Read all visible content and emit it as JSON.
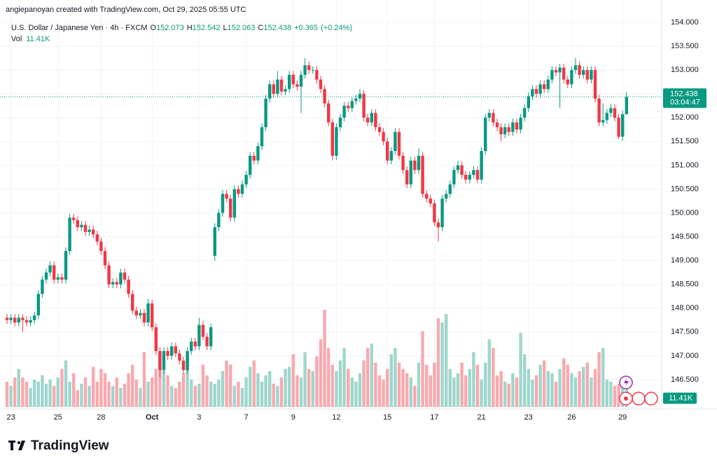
{
  "header": {
    "credit": "angiepanoyan created with TradingView.com, Oct 29, 2025 05:55 UTC"
  },
  "chart_data": {
    "type": "candlestick",
    "symbol": "U.S. Dollar / Japanese Yen · 4h · FXCM",
    "ohlc_labels": [
      "O",
      "H",
      "L",
      "C"
    ],
    "change": "+0.365",
    "change_pct": "(+0.24%)",
    "volume_name": "Vol",
    "volume_value_label": "11.41K",
    "countdown": "03:04:47",
    "up_color": "#089981",
    "down_color": "#f23645",
    "up_volume_color": "#9ed6cd",
    "down_volume_color": "#f8a9ae",
    "grid": true,
    "ylim": [
      145.883,
      154.47
    ],
    "yticks": [
      {
        "value": 154,
        "label": "154.000"
      },
      {
        "value": 153.5,
        "label": "153.500"
      },
      {
        "value": 153,
        "label": "153.000"
      },
      {
        "value": 152.5,
        "label": "152.500"
      },
      {
        "value": 152,
        "label": "152.000"
      },
      {
        "value": 151.5,
        "label": "151.500"
      },
      {
        "value": 151,
        "label": "151.000"
      },
      {
        "value": 150.5,
        "label": "150.500"
      },
      {
        "value": 150,
        "label": "150.000"
      },
      {
        "value": 149.5,
        "label": "149.500"
      },
      {
        "value": 149,
        "label": "149.000"
      },
      {
        "value": 148.5,
        "label": "148.500"
      },
      {
        "value": 148,
        "label": "148.000"
      },
      {
        "value": 147.5,
        "label": "147.500"
      },
      {
        "value": 147,
        "label": "147.000"
      },
      {
        "value": 146.5,
        "label": "146.500"
      }
    ],
    "volume_ylim": [
      0,
      50
    ],
    "categories": [
      null,
      "23",
      null,
      null,
      null,
      null,
      null,
      null,
      null,
      null,
      null,
      null,
      null,
      "25",
      null,
      null,
      null,
      null,
      null,
      null,
      null,
      null,
      null,
      null,
      "28",
      null,
      null,
      null,
      null,
      null,
      null,
      null,
      null,
      null,
      null,
      null,
      null,
      "Oct",
      null,
      null,
      null,
      null,
      null,
      null,
      null,
      null,
      null,
      null,
      null,
      "3",
      null,
      null,
      null,
      null,
      null,
      null,
      null,
      null,
      null,
      null,
      null,
      "7",
      null,
      null,
      null,
      null,
      null,
      null,
      null,
      null,
      null,
      null,
      null,
      "9",
      null,
      null,
      null,
      null,
      null,
      null,
      null,
      null,
      null,
      null,
      "12",
      null,
      null,
      null,
      null,
      null,
      null,
      null,
      null,
      null,
      null,
      null,
      null,
      "15",
      null,
      null,
      null,
      null,
      null,
      null,
      null,
      null,
      null,
      null,
      null,
      "17",
      null,
      null,
      null,
      null,
      null,
      null,
      null,
      null,
      null,
      null,
      null,
      "21",
      null,
      null,
      null,
      null,
      null,
      null,
      null,
      null,
      null,
      null,
      null,
      "23",
      null,
      null,
      null,
      null,
      null,
      null,
      null,
      null,
      null,
      null,
      "26",
      null,
      null,
      null,
      null,
      null,
      null,
      null,
      null,
      null,
      null,
      null,
      null,
      "29",
      null
    ],
    "candles": [
      [
        147.8,
        147.88,
        147.67,
        147.75
      ],
      [
        147.75,
        147.88,
        147.67,
        147.8
      ],
      [
        147.8,
        147.88,
        147.62,
        147.7
      ],
      [
        147.7,
        147.88,
        147.62,
        147.8
      ],
      [
        147.8,
        147.88,
        147.5,
        147.75
      ],
      [
        147.75,
        147.83,
        147.62,
        147.7
      ],
      [
        147.7,
        147.83,
        147.62,
        147.75
      ],
      [
        147.75,
        147.93,
        147.67,
        147.85
      ],
      [
        147.85,
        148.38,
        147.77,
        148.3
      ],
      [
        148.3,
        148.68,
        148.22,
        148.6
      ],
      [
        148.6,
        148.83,
        148.52,
        148.75
      ],
      [
        148.75,
        148.98,
        148.67,
        148.9
      ],
      [
        148.9,
        148.98,
        148.52,
        148.6
      ],
      [
        148.6,
        148.73,
        148.52,
        148.65
      ],
      [
        148.65,
        148.73,
        148.52,
        148.6
      ],
      [
        148.6,
        149.28,
        148.52,
        149.2
      ],
      [
        149.2,
        149.98,
        149.12,
        149.9
      ],
      [
        149.9,
        149.98,
        149.77,
        149.85
      ],
      [
        149.85,
        149.93,
        149.62,
        149.7
      ],
      [
        149.7,
        149.83,
        149.62,
        149.75
      ],
      [
        149.75,
        149.83,
        149.52,
        149.6
      ],
      [
        149.6,
        149.73,
        149.52,
        149.65
      ],
      [
        149.65,
        149.73,
        149.47,
        149.55
      ],
      [
        149.55,
        149.63,
        149.32,
        149.4
      ],
      [
        149.4,
        149.48,
        149.12,
        149.2
      ],
      [
        149.2,
        149.28,
        148.82,
        148.9
      ],
      [
        148.9,
        148.98,
        148.42,
        148.5
      ],
      [
        148.5,
        148.63,
        148.42,
        148.55
      ],
      [
        148.55,
        148.63,
        148.42,
        148.5
      ],
      [
        148.5,
        148.83,
        148.42,
        148.75
      ],
      [
        148.75,
        148.83,
        148.52,
        148.6
      ],
      [
        148.6,
        148.68,
        148.22,
        148.3
      ],
      [
        148.3,
        148.38,
        147.87,
        147.95
      ],
      [
        147.95,
        148.03,
        147.77,
        147.85
      ],
      [
        147.85,
        147.98,
        147.77,
        147.9
      ],
      [
        147.9,
        147.98,
        147.62,
        147.7
      ],
      [
        147.7,
        148.2,
        147.62,
        148.1
      ],
      [
        148.1,
        148.18,
        147.52,
        147.6
      ],
      [
        147.6,
        147.68,
        147.02,
        147.1
      ],
      [
        147.1,
        147.18,
        146.55,
        146.7
      ],
      [
        146.7,
        147.18,
        146.62,
        147.1
      ],
      [
        147.1,
        147.18,
        146.92,
        147.0
      ],
      [
        147.0,
        147.28,
        146.92,
        147.2
      ],
      [
        147.2,
        147.28,
        146.97,
        147.05
      ],
      [
        147.05,
        147.13,
        146.82,
        146.9
      ],
      [
        146.9,
        146.98,
        146.62,
        146.7
      ],
      [
        146.7,
        147.18,
        146.62,
        147.1
      ],
      [
        147.1,
        147.38,
        147.02,
        147.3
      ],
      [
        147.3,
        147.38,
        147.12,
        147.2
      ],
      [
        147.2,
        147.8,
        147.12,
        147.65
      ],
      [
        147.65,
        147.73,
        147.32,
        147.4
      ],
      [
        147.4,
        147.48,
        147.12,
        147.2
      ],
      [
        147.2,
        147.68,
        147.12,
        147.6
      ],
      [
        149.1,
        149.78,
        149.0,
        149.7
      ],
      [
        149.7,
        150.08,
        149.62,
        150.0
      ],
      [
        150.0,
        150.48,
        149.92,
        150.4
      ],
      [
        150.4,
        150.48,
        150.22,
        150.3
      ],
      [
        150.3,
        150.38,
        149.82,
        149.9
      ],
      [
        149.9,
        150.58,
        149.82,
        150.5
      ],
      [
        150.5,
        150.58,
        150.32,
        150.4
      ],
      [
        150.4,
        150.68,
        150.32,
        150.6
      ],
      [
        150.6,
        150.88,
        150.52,
        150.8
      ],
      [
        150.8,
        151.28,
        150.72,
        151.2
      ],
      [
        151.2,
        151.28,
        151.02,
        151.1
      ],
      [
        151.1,
        151.48,
        151.02,
        151.4
      ],
      [
        151.4,
        151.88,
        151.32,
        151.8
      ],
      [
        151.8,
        152.48,
        151.72,
        152.4
      ],
      [
        152.4,
        152.78,
        152.32,
        152.7
      ],
      [
        152.7,
        152.78,
        152.42,
        152.5
      ],
      [
        152.5,
        152.98,
        152.42,
        152.8
      ],
      [
        152.8,
        152.88,
        152.47,
        152.55
      ],
      [
        152.55,
        152.68,
        152.47,
        152.6
      ],
      [
        152.6,
        152.98,
        152.52,
        152.9
      ],
      [
        152.9,
        152.98,
        152.62,
        152.7
      ],
      [
        152.7,
        152.78,
        152.57,
        152.65
      ],
      [
        152.65,
        152.98,
        152.1,
        152.9
      ],
      [
        152.9,
        153.25,
        152.82,
        153.1
      ],
      [
        153.1,
        153.18,
        152.92,
        153.0
      ],
      [
        153.0,
        153.08,
        152.92,
        153.0
      ],
      [
        153.0,
        153.08,
        152.72,
        152.8
      ],
      [
        152.8,
        152.88,
        152.52,
        152.6
      ],
      [
        152.6,
        152.68,
        152.22,
        152.3
      ],
      [
        152.3,
        152.38,
        151.82,
        151.9
      ],
      [
        151.9,
        151.98,
        151.1,
        151.2
      ],
      [
        151.2,
        151.88,
        151.12,
        151.8
      ],
      [
        151.8,
        152.08,
        151.72,
        152.0
      ],
      [
        152.0,
        152.33,
        151.92,
        152.25
      ],
      [
        152.25,
        152.33,
        152.12,
        152.2
      ],
      [
        152.2,
        152.43,
        152.12,
        152.35
      ],
      [
        152.35,
        152.48,
        152.27,
        152.4
      ],
      [
        152.4,
        152.6,
        152.32,
        152.5
      ],
      [
        152.5,
        152.58,
        151.92,
        152.0
      ],
      [
        152.0,
        152.08,
        151.82,
        151.9
      ],
      [
        151.9,
        152.18,
        151.82,
        152.1
      ],
      [
        152.1,
        152.18,
        151.72,
        151.8
      ],
      [
        151.8,
        151.88,
        151.62,
        151.7
      ],
      [
        151.7,
        151.78,
        151.42,
        151.5
      ],
      [
        151.5,
        151.58,
        151.02,
        151.1
      ],
      [
        151.1,
        151.38,
        151.02,
        151.3
      ],
      [
        151.3,
        151.78,
        151.22,
        151.7
      ],
      [
        151.7,
        151.78,
        151.12,
        151.2
      ],
      [
        151.2,
        151.28,
        150.82,
        150.9
      ],
      [
        150.9,
        150.98,
        150.52,
        150.6
      ],
      [
        150.6,
        151.18,
        150.52,
        151.1
      ],
      [
        151.1,
        151.18,
        150.82,
        150.9
      ],
      [
        150.9,
        151.35,
        150.82,
        151.2
      ],
      [
        151.2,
        151.28,
        150.32,
        150.4
      ],
      [
        150.4,
        150.48,
        150.22,
        150.3
      ],
      [
        150.3,
        150.38,
        150.12,
        150.2
      ],
      [
        150.2,
        150.28,
        149.72,
        149.8
      ],
      [
        149.8,
        149.88,
        149.4,
        149.7
      ],
      [
        149.7,
        150.38,
        149.62,
        150.3
      ],
      [
        150.3,
        150.48,
        150.22,
        150.4
      ],
      [
        150.4,
        150.68,
        150.32,
        150.6
      ],
      [
        150.6,
        150.98,
        150.52,
        150.9
      ],
      [
        150.9,
        151.1,
        150.82,
        151.0
      ],
      [
        151.0,
        151.08,
        150.72,
        150.8
      ],
      [
        150.8,
        150.88,
        150.62,
        150.7
      ],
      [
        150.7,
        150.88,
        150.62,
        150.8
      ],
      [
        150.8,
        150.98,
        150.72,
        150.9
      ],
      [
        150.9,
        150.98,
        150.62,
        150.7
      ],
      [
        150.7,
        151.38,
        150.62,
        151.3
      ],
      [
        151.3,
        152.08,
        151.22,
        152.0
      ],
      [
        152.0,
        152.18,
        151.92,
        152.1
      ],
      [
        152.1,
        152.18,
        151.82,
        151.9
      ],
      [
        151.9,
        151.98,
        151.72,
        151.8
      ],
      [
        151.8,
        151.88,
        151.5,
        151.65
      ],
      [
        151.65,
        151.88,
        151.57,
        151.8
      ],
      [
        151.8,
        151.88,
        151.62,
        151.7
      ],
      [
        151.7,
        151.98,
        151.62,
        151.9
      ],
      [
        151.9,
        151.98,
        151.67,
        151.75
      ],
      [
        151.75,
        152.08,
        151.67,
        152.0
      ],
      [
        152.0,
        152.28,
        151.92,
        152.2
      ],
      [
        152.2,
        152.53,
        152.12,
        152.45
      ],
      [
        152.45,
        152.68,
        152.37,
        152.6
      ],
      [
        152.6,
        152.68,
        152.42,
        152.5
      ],
      [
        152.5,
        152.78,
        152.42,
        152.7
      ],
      [
        152.7,
        152.78,
        152.52,
        152.6
      ],
      [
        152.6,
        152.88,
        152.52,
        152.8
      ],
      [
        152.8,
        153.08,
        152.72,
        153.0
      ],
      [
        153.0,
        153.08,
        152.87,
        152.95
      ],
      [
        152.95,
        153.13,
        152.2,
        153.05
      ],
      [
        153.05,
        153.13,
        152.72,
        152.8
      ],
      [
        152.8,
        152.88,
        152.62,
        152.7
      ],
      [
        152.7,
        153.08,
        152.62,
        153.0
      ],
      [
        153.0,
        153.25,
        152.92,
        153.1
      ],
      [
        153.1,
        153.18,
        152.82,
        152.9
      ],
      [
        152.9,
        153.08,
        152.82,
        153.0
      ],
      [
        153.0,
        153.08,
        152.72,
        152.8
      ],
      [
        152.8,
        153.08,
        152.72,
        153.0
      ],
      [
        153.0,
        153.08,
        152.32,
        152.4
      ],
      [
        152.4,
        152.48,
        151.82,
        151.9
      ],
      [
        151.9,
        152.3,
        151.82,
        151.95
      ],
      [
        151.95,
        152.18,
        151.87,
        152.1
      ],
      [
        152.1,
        152.28,
        152.02,
        152.2
      ],
      [
        152.2,
        152.28,
        151.92,
        152.0
      ],
      [
        152.0,
        152.08,
        151.55,
        151.6
      ],
      [
        151.6,
        152.15,
        151.52,
        152.073
      ],
      [
        152.073,
        152.542,
        152.063,
        152.438
      ]
    ],
    "volumes": [
      12,
      10,
      14,
      18,
      14,
      12,
      9,
      13,
      12,
      15,
      11,
      13,
      10,
      14,
      18,
      22,
      12,
      16,
      8,
      11,
      14,
      10,
      19,
      12,
      18,
      16,
      12,
      10,
      14,
      9,
      11,
      16,
      20,
      13,
      9,
      26,
      12,
      14,
      18,
      21,
      17,
      15,
      10,
      9,
      12,
      16,
      24,
      13,
      10,
      11,
      20,
      15,
      12,
      11,
      13,
      17,
      22,
      20,
      10,
      12,
      9,
      14,
      19,
      22,
      16,
      12,
      15,
      17,
      11,
      10,
      14,
      18,
      19,
      25,
      15,
      14,
      26,
      18,
      17,
      24,
      32,
      46,
      28,
      20,
      17,
      22,
      28,
      18,
      14,
      12,
      16,
      22,
      28,
      30,
      21,
      15,
      13,
      18,
      25,
      28,
      21,
      18,
      16,
      14,
      10,
      21,
      36,
      20,
      15,
      21,
      42,
      40,
      44,
      18,
      14,
      16,
      21,
      15,
      18,
      26,
      20,
      13,
      21,
      32,
      28,
      15,
      17,
      12,
      11,
      16,
      14,
      35,
      25,
      18,
      13,
      15,
      20,
      22,
      17,
      16,
      12,
      18,
      23,
      20,
      16,
      14,
      17,
      19,
      21,
      14,
      18,
      26,
      28,
      13,
      12,
      10,
      11,
      14,
      11.41
    ]
  },
  "footer": {
    "logo": "TradingView"
  }
}
